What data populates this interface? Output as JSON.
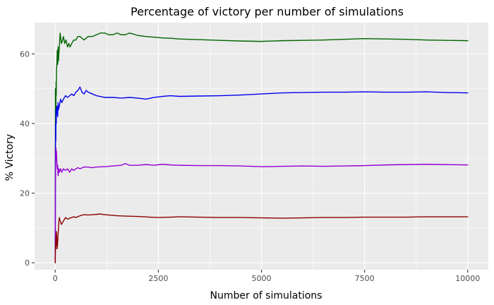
{
  "chart_data": {
    "type": "line",
    "title": "Percentage of victory per number of simulations",
    "xlabel": "Number of simulations",
    "ylabel": "% Victory",
    "xlim": [
      -500,
      10500
    ],
    "ylim": [
      -2,
      69
    ],
    "x_ticks": [
      0,
      2500,
      5000,
      7500,
      10000
    ],
    "x_tick_labels": [
      "0",
      "2500",
      "5000",
      "7500",
      "10000"
    ],
    "y_ticks": [
      0,
      20,
      40,
      60
    ],
    "y_tick_labels": [
      "0",
      "20",
      "40",
      "60"
    ],
    "grid": true,
    "legend": "none",
    "panel_background": "#EBEBEB",
    "series": [
      {
        "color": "#006400",
        "points": [
          [
            1,
            0
          ],
          [
            5,
            50
          ],
          [
            10,
            45
          ],
          [
            15,
            40
          ],
          [
            20,
            52
          ],
          [
            25,
            48
          ],
          [
            30,
            55
          ],
          [
            40,
            57
          ],
          [
            50,
            61
          ],
          [
            60,
            57
          ],
          [
            70,
            62
          ],
          [
            80,
            58
          ],
          [
            90,
            60
          ],
          [
            100,
            62
          ],
          [
            110,
            64
          ],
          [
            120,
            66
          ],
          [
            130,
            65
          ],
          [
            150,
            63
          ],
          [
            180,
            64
          ],
          [
            200,
            65
          ],
          [
            230,
            63
          ],
          [
            260,
            64
          ],
          [
            300,
            62
          ],
          [
            330,
            63
          ],
          [
            360,
            62
          ],
          [
            400,
            63
          ],
          [
            450,
            64
          ],
          [
            500,
            64
          ],
          [
            550,
            65
          ],
          [
            600,
            65
          ],
          [
            700,
            64
          ],
          [
            800,
            65
          ],
          [
            900,
            65
          ],
          [
            1000,
            65.5
          ],
          [
            1100,
            66
          ],
          [
            1200,
            66
          ],
          [
            1300,
            65.5
          ],
          [
            1400,
            65.5
          ],
          [
            1500,
            66
          ],
          [
            1600,
            65.5
          ],
          [
            1700,
            65.5
          ],
          [
            1800,
            66
          ],
          [
            1900,
            65.7
          ],
          [
            2000,
            65.3
          ],
          [
            2200,
            65
          ],
          [
            2400,
            64.8
          ],
          [
            2600,
            64.6
          ],
          [
            2800,
            64.5
          ],
          [
            3000,
            64.3
          ],
          [
            3500,
            64.1
          ],
          [
            4000,
            63.9
          ],
          [
            4500,
            63.7
          ],
          [
            5000,
            63.6
          ],
          [
            5500,
            63.8
          ],
          [
            6000,
            63.9
          ],
          [
            6500,
            64
          ],
          [
            7000,
            64.2
          ],
          [
            7500,
            64.4
          ],
          [
            8000,
            64.3
          ],
          [
            8500,
            64.2
          ],
          [
            9000,
            64
          ],
          [
            9500,
            63.9
          ],
          [
            10000,
            63.8
          ]
        ]
      },
      {
        "color": "#0000EE",
        "points": [
          [
            1,
            0
          ],
          [
            5,
            30
          ],
          [
            10,
            40
          ],
          [
            15,
            35
          ],
          [
            20,
            44
          ],
          [
            25,
            40
          ],
          [
            30,
            43
          ],
          [
            40,
            45
          ],
          [
            50,
            44
          ],
          [
            60,
            42
          ],
          [
            70,
            46
          ],
          [
            80,
            44
          ],
          [
            100,
            45
          ],
          [
            130,
            47
          ],
          [
            160,
            46
          ],
          [
            200,
            47
          ],
          [
            250,
            48
          ],
          [
            300,
            47.5
          ],
          [
            350,
            48
          ],
          [
            400,
            48.5
          ],
          [
            450,
            48
          ],
          [
            500,
            49
          ],
          [
            550,
            49.5
          ],
          [
            600,
            50.5
          ],
          [
            650,
            49
          ],
          [
            700,
            48.5
          ],
          [
            750,
            49.5
          ],
          [
            800,
            49
          ],
          [
            900,
            48.5
          ],
          [
            1000,
            48
          ],
          [
            1200,
            47.5
          ],
          [
            1400,
            47.5
          ],
          [
            1600,
            47.3
          ],
          [
            1800,
            47.5
          ],
          [
            2000,
            47.3
          ],
          [
            2200,
            47
          ],
          [
            2400,
            47.5
          ],
          [
            2600,
            47.8
          ],
          [
            2800,
            48
          ],
          [
            3000,
            47.8
          ],
          [
            3500,
            47.9
          ],
          [
            4000,
            48
          ],
          [
            4500,
            48.2
          ],
          [
            5000,
            48.5
          ],
          [
            5500,
            48.8
          ],
          [
            6000,
            48.9
          ],
          [
            6500,
            49
          ],
          [
            7000,
            49
          ],
          [
            7500,
            49.1
          ],
          [
            8000,
            49
          ],
          [
            8500,
            49
          ],
          [
            9000,
            49.1
          ],
          [
            9500,
            48.9
          ],
          [
            10000,
            48.8
          ]
        ]
      },
      {
        "color": "#9400D3",
        "points": [
          [
            1,
            0
          ],
          [
            5,
            20
          ],
          [
            10,
            28
          ],
          [
            15,
            32
          ],
          [
            20,
            33
          ],
          [
            25,
            30
          ],
          [
            30,
            32
          ],
          [
            40,
            29
          ],
          [
            50,
            27
          ],
          [
            60,
            28
          ],
          [
            70,
            25
          ],
          [
            80,
            26
          ],
          [
            90,
            27
          ],
          [
            100,
            26
          ],
          [
            130,
            27
          ],
          [
            160,
            26
          ],
          [
            200,
            27
          ],
          [
            250,
            26.5
          ],
          [
            300,
            27
          ],
          [
            350,
            26
          ],
          [
            400,
            27
          ],
          [
            450,
            26.5
          ],
          [
            500,
            27
          ],
          [
            550,
            27.3
          ],
          [
            600,
            27
          ],
          [
            700,
            27.5
          ],
          [
            800,
            27.5
          ],
          [
            900,
            27.3
          ],
          [
            1000,
            27.5
          ],
          [
            1200,
            27.6
          ],
          [
            1400,
            27.8
          ],
          [
            1600,
            28
          ],
          [
            1700,
            28.5
          ],
          [
            1800,
            28
          ],
          [
            2000,
            28
          ],
          [
            2200,
            28.2
          ],
          [
            2400,
            28
          ],
          [
            2600,
            28.3
          ],
          [
            2800,
            28.1
          ],
          [
            3000,
            28
          ],
          [
            3500,
            27.9
          ],
          [
            4000,
            27.9
          ],
          [
            4500,
            27.8
          ],
          [
            5000,
            27.6
          ],
          [
            5500,
            27.7
          ],
          [
            6000,
            27.8
          ],
          [
            6500,
            27.7
          ],
          [
            7000,
            27.8
          ],
          [
            7500,
            27.9
          ],
          [
            8000,
            28.1
          ],
          [
            8500,
            28.2
          ],
          [
            9000,
            28.3
          ],
          [
            9500,
            28.2
          ],
          [
            10000,
            28.1
          ]
        ]
      },
      {
        "color": "#8B0000",
        "points": [
          [
            1,
            0
          ],
          [
            5,
            3
          ],
          [
            10,
            6
          ],
          [
            15,
            4
          ],
          [
            20,
            8
          ],
          [
            25,
            5
          ],
          [
            30,
            9
          ],
          [
            40,
            7
          ],
          [
            50,
            4
          ],
          [
            60,
            6
          ],
          [
            70,
            8
          ],
          [
            80,
            10
          ],
          [
            90,
            12
          ],
          [
            100,
            13
          ],
          [
            120,
            12
          ],
          [
            150,
            11
          ],
          [
            200,
            12
          ],
          [
            250,
            13
          ],
          [
            300,
            12.5
          ],
          [
            350,
            12.8
          ],
          [
            400,
            13
          ],
          [
            450,
            13.2
          ],
          [
            500,
            13
          ],
          [
            600,
            13.5
          ],
          [
            700,
            13.8
          ],
          [
            800,
            13.7
          ],
          [
            900,
            13.8
          ],
          [
            1000,
            13.9
          ],
          [
            1100,
            14
          ],
          [
            1200,
            13.8
          ],
          [
            1300,
            13.7
          ],
          [
            1400,
            13.6
          ],
          [
            1500,
            13.5
          ],
          [
            1700,
            13.4
          ],
          [
            2000,
            13.3
          ],
          [
            2300,
            13.1
          ],
          [
            2500,
            13
          ],
          [
            2800,
            13.1
          ],
          [
            3000,
            13.2
          ],
          [
            3500,
            13.1
          ],
          [
            4000,
            13
          ],
          [
            4500,
            13
          ],
          [
            5000,
            12.9
          ],
          [
            5500,
            12.8
          ],
          [
            6000,
            12.9
          ],
          [
            6500,
            13
          ],
          [
            7000,
            13
          ],
          [
            7500,
            13.1
          ],
          [
            8000,
            13.1
          ],
          [
            8500,
            13.1
          ],
          [
            9000,
            13.2
          ],
          [
            9500,
            13.2
          ],
          [
            10000,
            13.2
          ]
        ]
      }
    ]
  }
}
